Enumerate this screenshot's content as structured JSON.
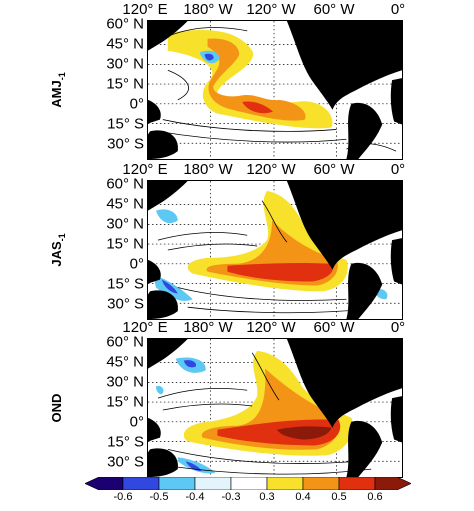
{
  "lon_labels": [
    "120° E",
    "180° W",
    "120° W",
    "60° W",
    "0°"
  ],
  "lat_labels": [
    "60° N",
    "45° N",
    "30° N",
    "15° N",
    "0°",
    "15° S",
    "30° S"
  ],
  "panels": [
    {
      "label": "AMJ",
      "subscript": "-1"
    },
    {
      "label": "JAS",
      "subscript": "-1"
    },
    {
      "label": "OND",
      "subscript": ""
    }
  ],
  "colorbar": {
    "ticks": [
      "-0.6",
      "-0.5",
      "-0.4",
      "-0.3",
      "0.3",
      "0.4",
      "0.5",
      "0.6"
    ],
    "colors": [
      "#1a0070",
      "#3148e0",
      "#5ec8f5",
      "#e3f4fc",
      "#ffffff",
      "#f8e12a",
      "#f39417",
      "#e0300f",
      "#8c1a0a"
    ]
  },
  "colors": {
    "land": "#000000",
    "warm1": "#f8e12a",
    "warm2": "#f39417",
    "warm3": "#e0300f",
    "warm4": "#8c1a0a",
    "cool1": "#5ec8f5",
    "cool2": "#3148e0"
  }
}
